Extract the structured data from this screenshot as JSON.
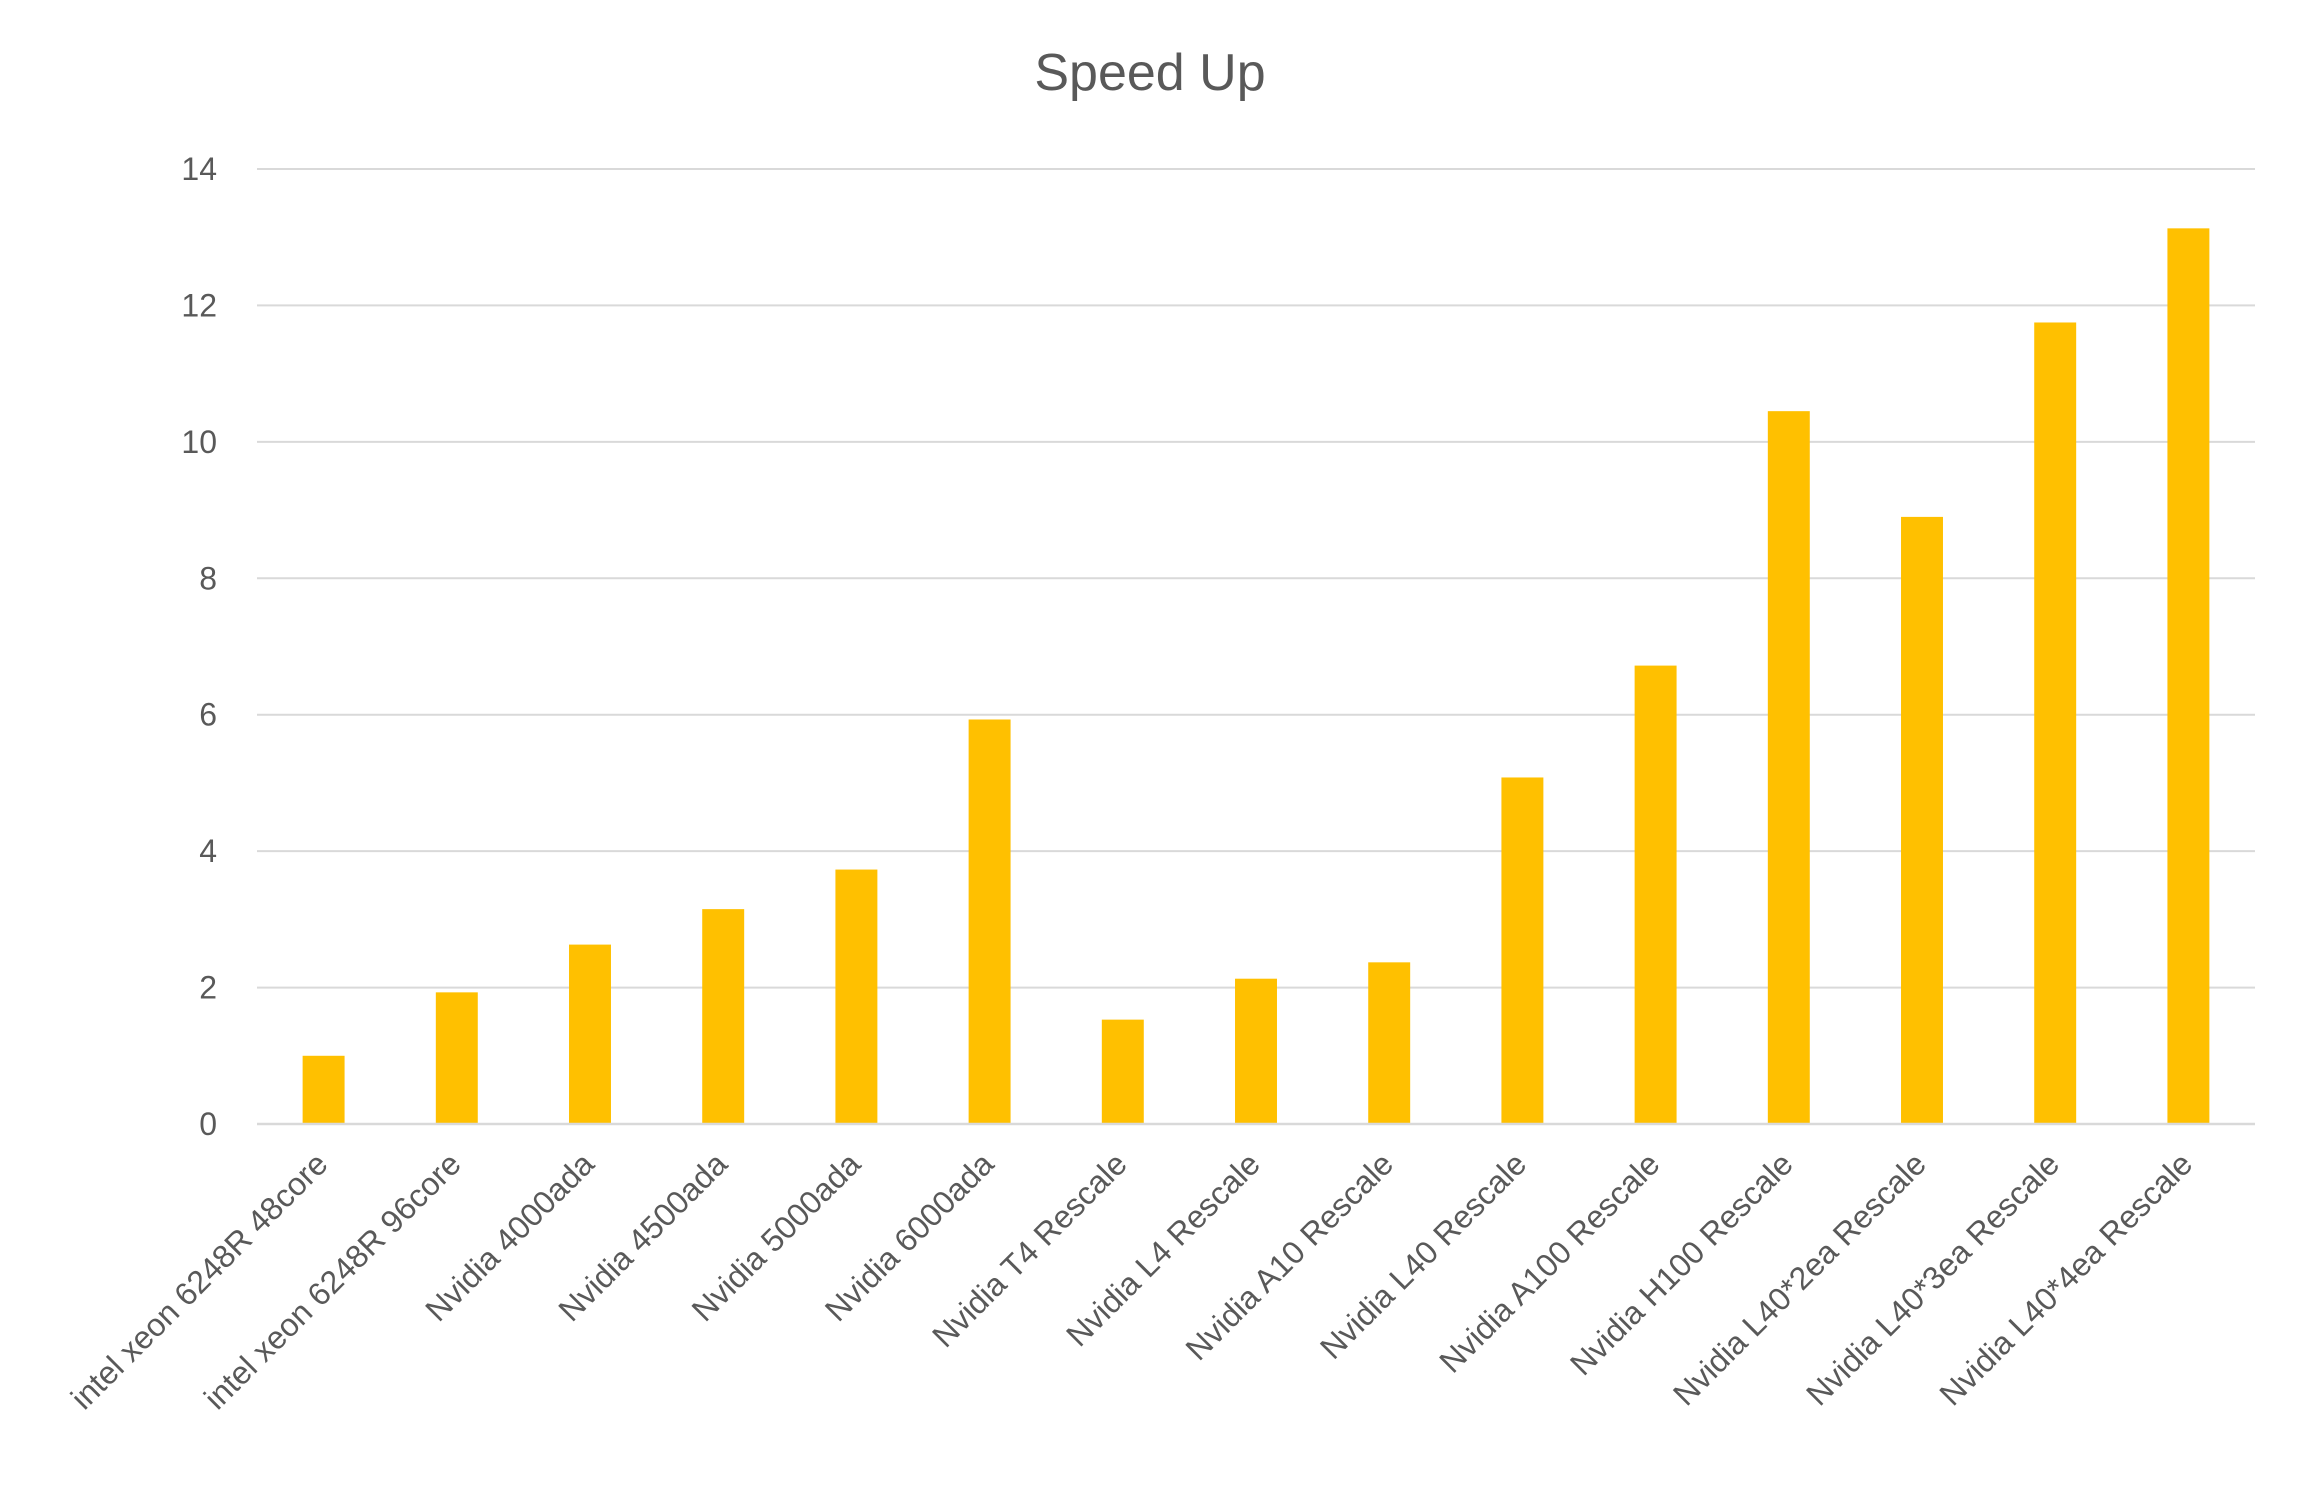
{
  "chart_data": {
    "type": "bar",
    "title": "Speed Up",
    "xlabel": "",
    "ylabel": "",
    "ylim": [
      0,
      14
    ],
    "yticks": [
      0,
      2,
      4,
      6,
      8,
      10,
      12,
      14
    ],
    "grid": true,
    "legend": "none",
    "bar_color": "#FFC000",
    "categories": [
      "intel xeon 6248R 48core",
      "intel xeon 6248R 96core",
      "Nvidia 4000ada",
      "Nvidia 4500ada",
      "Nvidia 5000ada",
      "Nvidia 6000ada",
      "Nvidia  T4 Rescale",
      "Nvidia  L4 Rescale",
      "Nvidia A10 Rescale",
      "Nvidia L40 Rescale",
      "Nvidia A100 Rescale",
      "Nvidia H100 Rescale",
      "Nvidia L40*2ea Rescale",
      "Nvidia L40*3ea Rescale",
      "Nvidia L40*4ea Rescale"
    ],
    "values": [
      1.0,
      1.93,
      2.63,
      3.15,
      3.73,
      5.93,
      1.53,
      2.13,
      2.37,
      5.08,
      6.72,
      10.45,
      8.9,
      11.75,
      13.13
    ]
  }
}
